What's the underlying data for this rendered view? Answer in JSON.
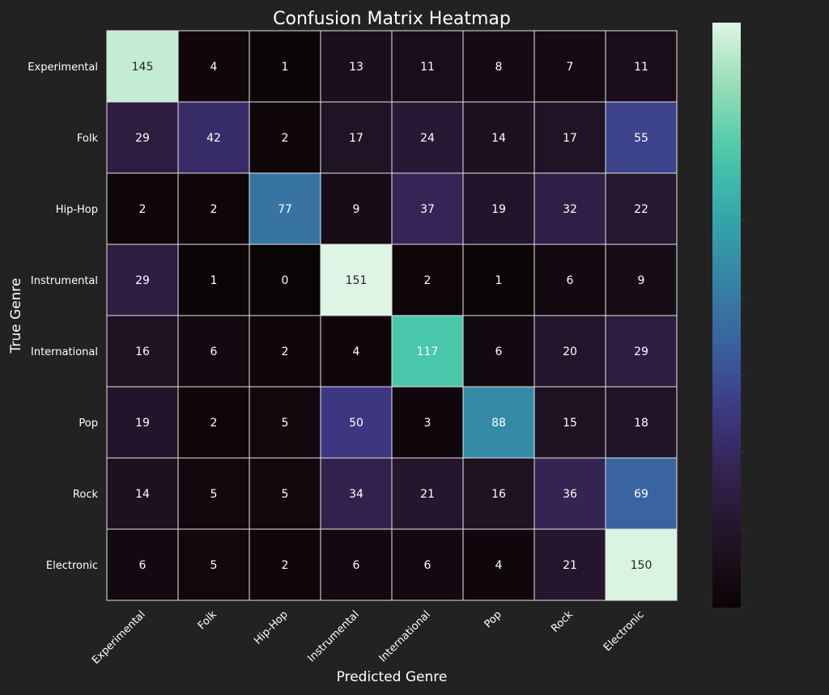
{
  "chart_data": {
    "type": "heatmap",
    "title": "Confusion Matrix Heatmap",
    "xlabel": "Predicted Genre",
    "ylabel": "True Genre",
    "x_categories": [
      "Experimental",
      "Folk",
      "Hip-Hop",
      "Instrumental",
      "International",
      "Pop",
      "Rock",
      "Electronic"
    ],
    "y_categories": [
      "Experimental",
      "Folk",
      "Hip-Hop",
      "Instrumental",
      "International",
      "Pop",
      "Rock",
      "Electronic"
    ],
    "values": [
      [
        145,
        4,
        1,
        13,
        11,
        8,
        7,
        11
      ],
      [
        29,
        42,
        2,
        17,
        24,
        14,
        17,
        55
      ],
      [
        2,
        2,
        77,
        9,
        37,
        19,
        32,
        22
      ],
      [
        29,
        1,
        0,
        151,
        2,
        1,
        6,
        9
      ],
      [
        16,
        6,
        2,
        4,
        117,
        6,
        20,
        29
      ],
      [
        19,
        2,
        5,
        50,
        3,
        88,
        15,
        18
      ],
      [
        14,
        5,
        5,
        34,
        21,
        16,
        36,
        69
      ],
      [
        6,
        5,
        2,
        6,
        6,
        4,
        21,
        150
      ]
    ],
    "value_range": [
      0,
      151
    ],
    "colormap": "mako",
    "colorbar": true,
    "grid": true,
    "background_color": "#222222",
    "text_color": "#ffffff",
    "cell_border_color": "#e6e6e6"
  }
}
